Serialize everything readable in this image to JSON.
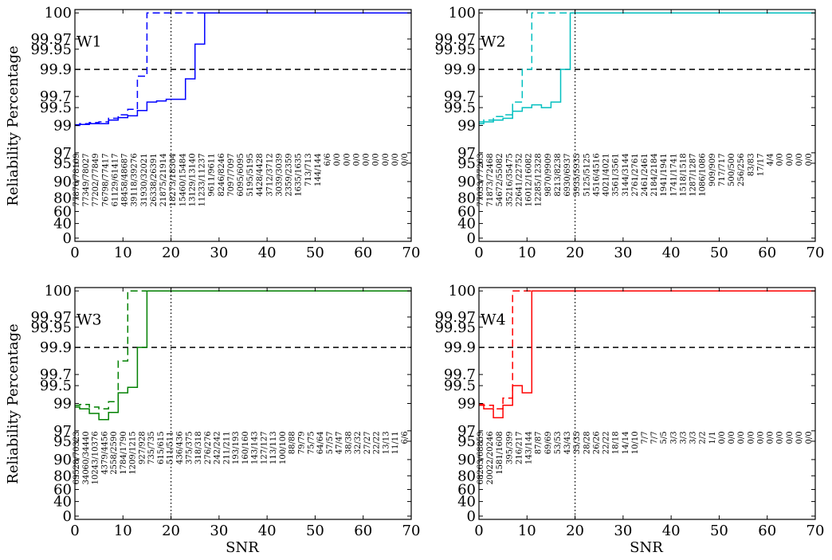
{
  "figure": {
    "ylabel": "Reliability Percentage",
    "xlabel": "SNR"
  },
  "chart_data": [
    {
      "type": "line",
      "panel": "W1",
      "color": "#0000ff",
      "xlim": [
        0,
        70
      ],
      "xticks": [
        0,
        10,
        20,
        30,
        40,
        50,
        60,
        70
      ],
      "yticks_upper": [
        "99",
        "99.5",
        "99.7",
        "99.9",
        "99.95",
        "99.97",
        "100"
      ],
      "yticks_lower": [
        "0",
        "40",
        "60",
        "80",
        "90",
        "95",
        "97"
      ],
      "reference_hline": "99.9",
      "reference_vline": 20,
      "series": [
        {
          "style": "solid",
          "x": [
            0,
            1,
            3,
            5,
            7,
            9,
            11,
            13,
            15,
            17,
            19,
            21,
            23,
            25,
            27,
            70
          ],
          "y": [
            99.0,
            99.03,
            99.05,
            99.05,
            99.15,
            99.22,
            99.27,
            99.42,
            99.6,
            99.62,
            99.65,
            99.65,
            99.83,
            99.96,
            100,
            100
          ]
        },
        {
          "style": "dashed",
          "x": [
            0,
            1,
            3,
            5,
            7,
            9,
            11,
            13,
            15,
            70
          ],
          "y": [
            99.02,
            99.05,
            99.08,
            99.1,
            99.2,
            99.3,
            99.45,
            99.85,
            100,
            100
          ]
        }
      ],
      "counts": [
        "77876/78109",
        "77349/78027",
        "77202/77849",
        "76798/77417",
        "61129/61417",
        "48458/48687",
        "39118/39276",
        "31930/32021",
        "26338/26391",
        "21875/21914",
        "18273/18304",
        "15460/15484",
        "13129/13140",
        "11233/11237",
        "9611/9611",
        "8246/8246",
        "7097/7097",
        "6095/6095",
        "5195/5195",
        "4428/4428",
        "3712/3712",
        "3039/3039",
        "2359/2359",
        "1635/1635",
        "713/713",
        "144/144",
        "6/6",
        "0/0",
        "0/0",
        "0/0",
        "0/0",
        "0/0",
        "0/0",
        "0/0",
        "0/0"
      ]
    },
    {
      "type": "line",
      "panel": "W2",
      "color": "#00bfbf",
      "xlim": [
        0,
        70
      ],
      "xticks": [
        0,
        10,
        20,
        30,
        40,
        50,
        60,
        70
      ],
      "yticks_upper": [
        "99",
        "99.5",
        "99.7",
        "99.9",
        "99.95",
        "99.97",
        "100"
      ],
      "yticks_lower": [
        "0",
        "40",
        "60",
        "80",
        "90",
        "95",
        "97"
      ],
      "reference_hline": "99.9",
      "reference_vline": 20,
      "series": [
        {
          "style": "solid",
          "x": [
            0,
            1,
            3,
            5,
            7,
            9,
            11,
            13,
            15,
            17,
            19,
            70
          ],
          "y": [
            99.05,
            99.1,
            99.15,
            99.2,
            99.4,
            99.5,
            99.55,
            99.5,
            99.6,
            99.9,
            100,
            100
          ]
        },
        {
          "style": "dashed",
          "x": [
            0,
            1,
            3,
            5,
            7,
            9,
            11,
            70
          ],
          "y": [
            99.1,
            99.15,
            99.25,
            99.3,
            99.6,
            99.9,
            100,
            100
          ]
        }
      ],
      "counts": [
        "77033/77263",
        "71873/72468",
        "54672/55082",
        "35216/35475",
        "22641/22752",
        "16012/16082",
        "12285/12328",
        "9870/9909",
        "8213/8238",
        "6930/6937",
        "5935/5935",
        "5125/5125",
        "4516/4516",
        "4021/4021",
        "3561/3561",
        "3144/3144",
        "2761/2761",
        "2461/2461",
        "2184/2184",
        "1941/1941",
        "1741/1741",
        "1518/1518",
        "1287/1287",
        "1086/1086",
        "909/909",
        "717/717",
        "500/500",
        "256/256",
        "83/83",
        "17/17",
        "4/4",
        "0/0",
        "0/0",
        "0/0",
        "0/0"
      ]
    },
    {
      "type": "line",
      "panel": "W3",
      "color": "#008000",
      "xlim": [
        0,
        70
      ],
      "xticks": [
        0,
        10,
        20,
        30,
        40,
        50,
        60,
        70
      ],
      "yticks_upper": [
        "99",
        "99.5",
        "99.7",
        "99.9",
        "99.95",
        "99.97",
        "100"
      ],
      "yticks_lower": [
        "0",
        "40",
        "60",
        "80",
        "90",
        "95",
        "97"
      ],
      "reference_hline": "99.9",
      "reference_vline": 20,
      "series": [
        {
          "style": "solid",
          "x": [
            0,
            1,
            3,
            5,
            7,
            9,
            11,
            13,
            15,
            70
          ],
          "y": [
            98.9,
            98.85,
            98.72,
            98.55,
            98.75,
            99.3,
            99.45,
            99.9,
            100,
            100
          ]
        },
        {
          "style": "dashed",
          "x": [
            0,
            1,
            3,
            5,
            7,
            9,
            11,
            70
          ],
          "y": [
            98.95,
            98.97,
            98.9,
            98.85,
            99.05,
            99.8,
            100,
            100
          ]
        }
      ],
      "counts": [
        "69528/70323",
        "34060/34440",
        "10243/10376",
        "4379/4456",
        "2558/2590",
        "1784/1790",
        "1209/1215",
        "927/928",
        "735/735",
        "615/615",
        "511/511",
        "436/436",
        "375/375",
        "318/318",
        "276/276",
        "242/242",
        "211/211",
        "193/193",
        "160/160",
        "143/143",
        "127/127",
        "113/113",
        "100/100",
        "88/88",
        "79/79",
        "75/75",
        "64/64",
        "57/57",
        "47/47",
        "38/38",
        "32/32",
        "27/27",
        "22/22",
        "13/13",
        "11/11",
        "6/6"
      ]
    },
    {
      "type": "line",
      "panel": "W4",
      "color": "#ff0000",
      "xlim": [
        0,
        70
      ],
      "xticks": [
        0,
        10,
        20,
        30,
        40,
        50,
        60,
        70
      ],
      "yticks_upper": [
        "99",
        "99.5",
        "99.7",
        "99.9",
        "99.95",
        "99.97",
        "100"
      ],
      "yticks_lower": [
        "0",
        "40",
        "60",
        "80",
        "90",
        "95",
        "97"
      ],
      "reference_hline": "99.9",
      "reference_vline": 20,
      "series": [
        {
          "style": "solid",
          "x": [
            0,
            1,
            3,
            5,
            7,
            9,
            11,
            70
          ],
          "y": [
            98.95,
            98.85,
            98.6,
            98.95,
            99.5,
            99.3,
            100,
            100
          ]
        },
        {
          "style": "dashed",
          "x": [
            0,
            1,
            3,
            5,
            7,
            70
          ],
          "y": [
            98.98,
            98.95,
            98.85,
            99.15,
            100,
            100
          ]
        }
      ],
      "counts": [
        "68263/68859",
        "20022/20246",
        "1581/1608",
        "395/399",
        "216/217",
        "143/144",
        "87/87",
        "69/69",
        "53/53",
        "43/43",
        "35/35",
        "28/28",
        "26/26",
        "22/22",
        "18/18",
        "14/14",
        "10/10",
        "7/7",
        "7/7",
        "5/5",
        "3/3",
        "3/3",
        "3/3",
        "2/2",
        "1/1",
        "0/0",
        "0/0",
        "0/0",
        "0/0",
        "0/0",
        "0/0",
        "0/0",
        "0/0",
        "0/0",
        "0/0"
      ]
    }
  ]
}
